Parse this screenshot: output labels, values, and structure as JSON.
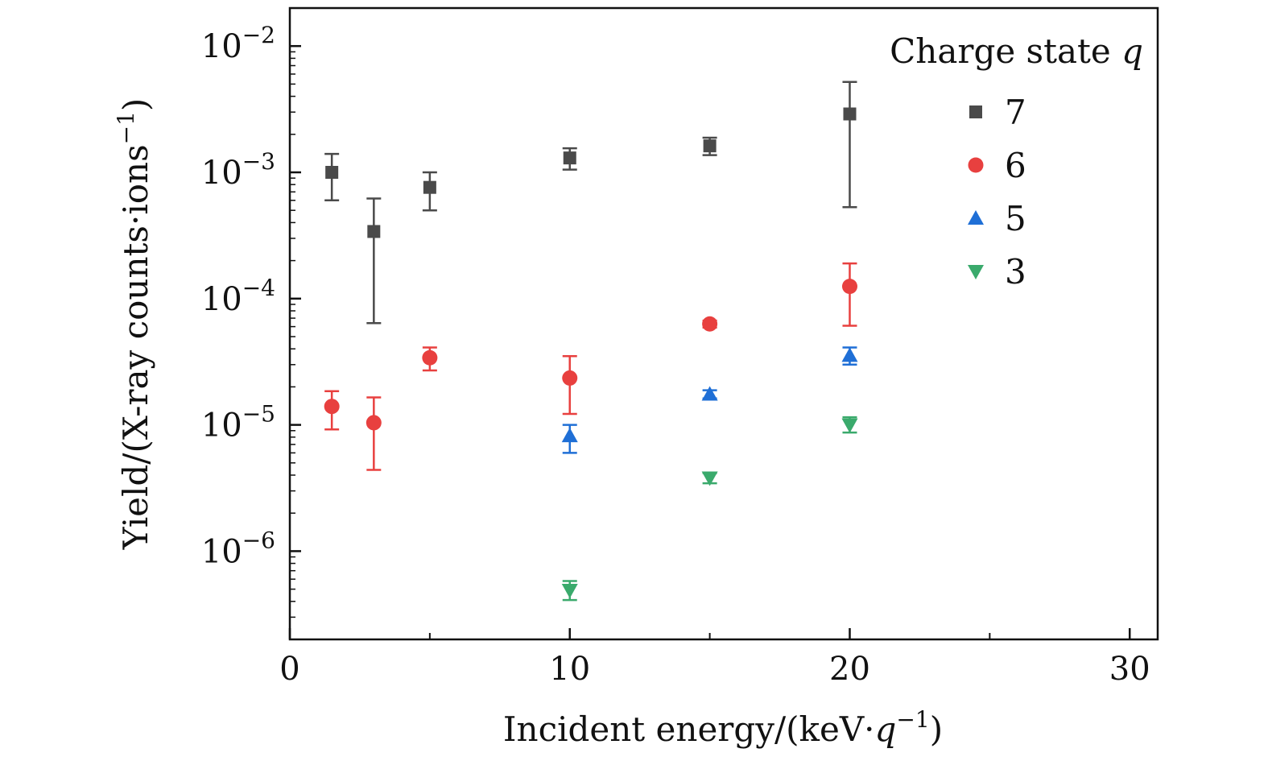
{
  "chart_data": {
    "type": "scatter",
    "xlabel": "Incident energy/(keV·q⁻¹)",
    "xlabel_parts": {
      "prefix": "Incident energy/(keV·",
      "var": "q",
      "sup": "−1",
      "suffix": ")"
    },
    "ylabel": "Yield/(X-ray counts·ions⁻¹)",
    "ylabel_parts": {
      "prefix": "Yield/(X-ray counts·ions",
      "sup": "−1",
      "suffix": ")"
    },
    "xlim": [
      0,
      31
    ],
    "ylim": [
      2e-07,
      0.02
    ],
    "y_scale": "log",
    "x_ticks": [
      0,
      10,
      20,
      30
    ],
    "x_tick_labels": [
      "0",
      "10",
      "20",
      "30"
    ],
    "y_ticks": [
      1e-06,
      1e-05,
      0.0001,
      0.001,
      0.01
    ],
    "y_tick_labels": [
      {
        "base": "10",
        "exp": "−6"
      },
      {
        "base": "10",
        "exp": "−5"
      },
      {
        "base": "10",
        "exp": "−4"
      },
      {
        "base": "10",
        "exp": "−3"
      },
      {
        "base": "10",
        "exp": "−2"
      }
    ],
    "grid": false,
    "legend": {
      "position": "top-right",
      "title_prefix": "Charge state",
      "title_var": "q"
    },
    "series": [
      {
        "name": "7",
        "marker": "square",
        "color": "#4a4a4a",
        "points": [
          {
            "x": 1.5,
            "y": 0.001,
            "ylow": 0.0006,
            "yhigh": 0.0014
          },
          {
            "x": 3,
            "y": 0.00034,
            "ylow": 6.4e-05,
            "yhigh": 0.00062
          },
          {
            "x": 5,
            "y": 0.00076,
            "ylow": 0.0005,
            "yhigh": 0.001
          },
          {
            "x": 10,
            "y": 0.0013,
            "ylow": 0.00105,
            "yhigh": 0.00155
          },
          {
            "x": 15,
            "y": 0.00162,
            "ylow": 0.00137,
            "yhigh": 0.00188
          },
          {
            "x": 20,
            "y": 0.0029,
            "ylow": 0.00053,
            "yhigh": 0.0052
          }
        ]
      },
      {
        "name": "6",
        "marker": "circle",
        "color": "#e8403f",
        "points": [
          {
            "x": 1.5,
            "y": 1.4e-05,
            "ylow": 9.2e-06,
            "yhigh": 1.85e-05
          },
          {
            "x": 3,
            "y": 1.04e-05,
            "ylow": 4.4e-06,
            "yhigh": 1.65e-05
          },
          {
            "x": 5,
            "y": 3.4e-05,
            "ylow": 2.7e-05,
            "yhigh": 4.1e-05
          },
          {
            "x": 10,
            "y": 2.35e-05,
            "ylow": 1.22e-05,
            "yhigh": 3.5e-05
          },
          {
            "x": 15,
            "y": 6.3e-05,
            "ylow": 5.9e-05,
            "yhigh": 6.7e-05
          },
          {
            "x": 20,
            "y": 0.000125,
            "ylow": 6.1e-05,
            "yhigh": 0.00019
          }
        ]
      },
      {
        "name": "5",
        "marker": "triangle-up",
        "color": "#1f6fd6",
        "points": [
          {
            "x": 10,
            "y": 8.2e-06,
            "ylow": 6e-06,
            "yhigh": 1e-05
          },
          {
            "x": 15,
            "y": 1.75e-05,
            "ylow": 1.62e-05,
            "yhigh": 1.88e-05
          },
          {
            "x": 20,
            "y": 3.55e-05,
            "ylow": 3e-05,
            "yhigh": 4.1e-05
          }
        ]
      },
      {
        "name": "3",
        "marker": "triangle-down",
        "color": "#3aaa6c",
        "points": [
          {
            "x": 10,
            "y": 4.9e-07,
            "ylow": 4.1e-07,
            "yhigh": 5.8e-07
          },
          {
            "x": 15,
            "y": 3.8e-06,
            "ylow": 3.45e-06,
            "yhigh": 4.15e-06
          },
          {
            "x": 20,
            "y": 1e-05,
            "ylow": 8.7e-06,
            "yhigh": 1.15e-05
          }
        ]
      }
    ]
  }
}
